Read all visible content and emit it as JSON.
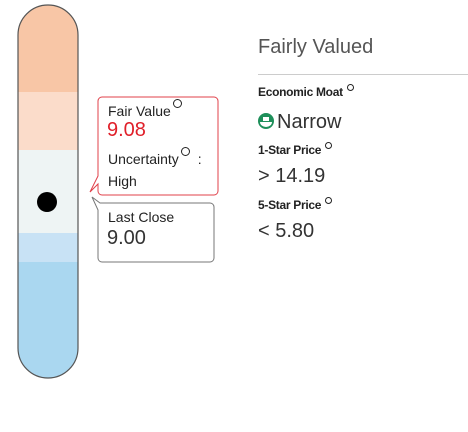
{
  "valuation": {
    "label": "Fairly Valued"
  },
  "economic_moat": {
    "label": "Economic Moat",
    "value": "Narrow"
  },
  "one_star_price": {
    "label": "1-Star Price",
    "comparator": ">",
    "value": "14.19"
  },
  "five_star_price": {
    "label": "5-Star Price",
    "comparator": "<",
    "value": "5.80"
  },
  "fair_value": {
    "label": "Fair Value",
    "value": "9.08",
    "uncertainty_label": "Uncertainty",
    "separator": ":",
    "uncertainty": "High"
  },
  "last_close": {
    "label": "Last Close",
    "value": "9.00"
  }
}
